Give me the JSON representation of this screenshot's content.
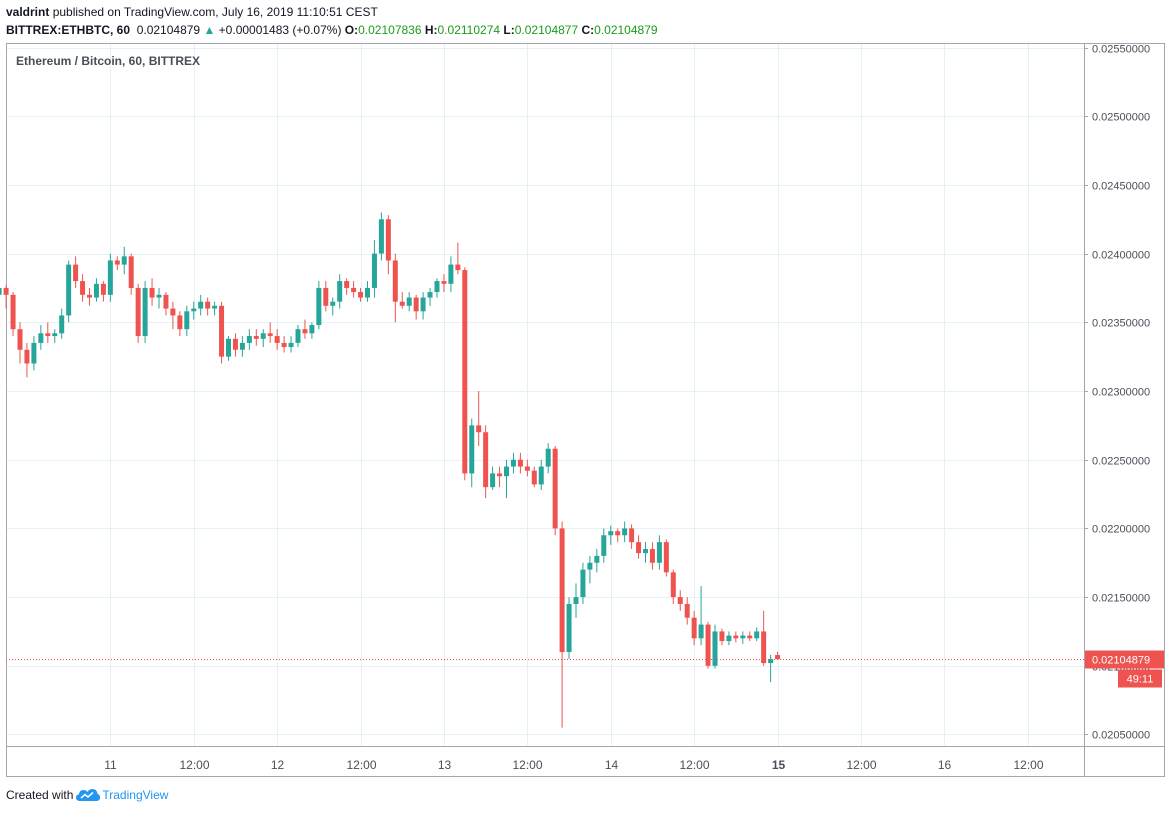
{
  "header": {
    "author": "valdrint",
    "published_text": "published on TradingView.com, July 16, 2019 11:10:51 CEST",
    "symbol_timeframe": "BITTREX:ETHBTC, 60",
    "last_price": "0.02104879",
    "change": "+0.00001483 (+0.07%)",
    "o_label": "O:",
    "o_value": "0.02107836",
    "h_label": "H:",
    "h_value": "0.02110274",
    "l_label": "L:",
    "l_value": "0.02104877",
    "c_label": "C:",
    "c_value": "0.02104879"
  },
  "footer": {
    "created_with": "Created with",
    "brand": "TradingView"
  },
  "colors": {
    "up": "#26a69a",
    "down": "#ef5350",
    "grid": "#e6f0f7",
    "price_line": "#ef5350",
    "brand": "#2196f3"
  },
  "chart_data": {
    "type": "candlestick",
    "title": "Ethereum / Bitcoin, 60, BITTREX",
    "ylim": [
      0.02045,
      0.02555
    ],
    "y_ticks": [
      "0.02550000",
      "0.02500000",
      "0.02450000",
      "0.02400000",
      "0.02350000",
      "0.02300000",
      "0.02250000",
      "0.02200000",
      "0.02150000",
      "0.02100000",
      "0.02050000"
    ],
    "x_ticks": [
      "11",
      "12:00",
      "12",
      "12:00",
      "13",
      "12:00",
      "14",
      "12:00",
      "15",
      "12:00",
      "16",
      "12:00"
    ],
    "x_tick_hours": [
      38,
      50,
      62,
      74,
      86,
      98,
      110,
      122,
      134,
      146,
      158,
      170
    ],
    "last_price": {
      "value": 0.02104879,
      "label": "0.02104879",
      "countdown": "49:11"
    },
    "candles": [
      [
        0.02375,
        0.02377,
        0.02368,
        0.0237
      ],
      [
        0.0237,
        0.02372,
        0.02363,
        0.02365
      ],
      [
        0.02366,
        0.02368,
        0.02355,
        0.0236
      ],
      [
        0.0236,
        0.02362,
        0.0234,
        0.02345
      ],
      [
        0.02345,
        0.0235,
        0.02295,
        0.02335
      ],
      [
        0.02335,
        0.02337,
        0.0232,
        0.02325
      ],
      [
        0.02325,
        0.02345,
        0.0232,
        0.02342
      ],
      [
        0.02342,
        0.02348,
        0.0233,
        0.02335
      ],
      [
        0.02335,
        0.02385,
        0.0233,
        0.0238
      ],
      [
        0.0238,
        0.0245,
        0.02375,
        0.02435
      ],
      [
        0.02435,
        0.02458,
        0.02395,
        0.02415
      ],
      [
        0.02415,
        0.0242,
        0.02395,
        0.024
      ],
      [
        0.024,
        0.02405,
        0.0238,
        0.02385
      ],
      [
        0.02385,
        0.024,
        0.02375,
        0.02395
      ],
      [
        0.02395,
        0.024,
        0.0238,
        0.0239
      ],
      [
        0.0239,
        0.02425,
        0.02385,
        0.0242
      ],
      [
        0.0242,
        0.02422,
        0.0233,
        0.02375
      ],
      [
        0.02375,
        0.0238,
        0.02362,
        0.02365
      ],
      [
        0.02365,
        0.0237,
        0.02355,
        0.0236
      ],
      [
        0.0236,
        0.02368,
        0.02355,
        0.02365
      ],
      [
        0.02365,
        0.02368,
        0.02355,
        0.0236
      ],
      [
        0.0236,
        0.02372,
        0.02358,
        0.0237
      ],
      [
        0.0237,
        0.02378,
        0.02365,
        0.02375
      ],
      [
        0.02375,
        0.02377,
        0.0236,
        0.0237
      ],
      [
        0.0237,
        0.02372,
        0.0234,
        0.02345
      ],
      [
        0.02345,
        0.0235,
        0.0232,
        0.0233
      ],
      [
        0.0233,
        0.02335,
        0.0231,
        0.0232
      ],
      [
        0.0232,
        0.0234,
        0.02315,
        0.02335
      ],
      [
        0.02335,
        0.02348,
        0.0233,
        0.02342
      ],
      [
        0.02342,
        0.0235,
        0.02335,
        0.0234
      ],
      [
        0.0234,
        0.02345,
        0.02335,
        0.02342
      ],
      [
        0.02342,
        0.0236,
        0.02338,
        0.02355
      ],
      [
        0.02355,
        0.02395,
        0.0235,
        0.02392
      ],
      [
        0.02392,
        0.02398,
        0.02375,
        0.0238
      ],
      [
        0.0238,
        0.02385,
        0.02365,
        0.0237
      ],
      [
        0.0237,
        0.02375,
        0.02362,
        0.02368
      ],
      [
        0.02368,
        0.02382,
        0.02365,
        0.02378
      ],
      [
        0.02378,
        0.0238,
        0.02365,
        0.0237
      ],
      [
        0.0237,
        0.024,
        0.02365,
        0.02395
      ],
      [
        0.02395,
        0.02398,
        0.02388,
        0.02392
      ],
      [
        0.02392,
        0.02405,
        0.02385,
        0.02398
      ],
      [
        0.02398,
        0.024,
        0.0237,
        0.02375
      ],
      [
        0.02375,
        0.02378,
        0.02335,
        0.0234
      ],
      [
        0.0234,
        0.0238,
        0.02335,
        0.02375
      ],
      [
        0.02375,
        0.02382,
        0.02362,
        0.02368
      ],
      [
        0.02368,
        0.02375,
        0.0236,
        0.0237
      ],
      [
        0.0237,
        0.02372,
        0.02355,
        0.0236
      ],
      [
        0.0236,
        0.02365,
        0.02345,
        0.02355
      ],
      [
        0.02355,
        0.02358,
        0.0234,
        0.02345
      ],
      [
        0.02345,
        0.02362,
        0.0234,
        0.02358
      ],
      [
        0.02358,
        0.02365,
        0.02352,
        0.0236
      ],
      [
        0.0236,
        0.0237,
        0.02355,
        0.02365
      ],
      [
        0.02365,
        0.02368,
        0.02355,
        0.0236
      ],
      [
        0.0236,
        0.02365,
        0.02355,
        0.02362
      ],
      [
        0.02362,
        0.02365,
        0.0232,
        0.02325
      ],
      [
        0.02325,
        0.0234,
        0.02322,
        0.02338
      ],
      [
        0.02338,
        0.02342,
        0.02325,
        0.0233
      ],
      [
        0.0233,
        0.0234,
        0.02325,
        0.02335
      ],
      [
        0.02335,
        0.02345,
        0.0233,
        0.0234
      ],
      [
        0.0234,
        0.02345,
        0.02333,
        0.02338
      ],
      [
        0.02338,
        0.02345,
        0.02332,
        0.02342
      ],
      [
        0.02342,
        0.0235,
        0.02335,
        0.0234
      ],
      [
        0.0234,
        0.02345,
        0.0233,
        0.02335
      ],
      [
        0.02335,
        0.0234,
        0.02328,
        0.02332
      ],
      [
        0.02332,
        0.0234,
        0.02328,
        0.02335
      ],
      [
        0.02335,
        0.02348,
        0.02332,
        0.02345
      ],
      [
        0.02345,
        0.02352,
        0.02338,
        0.02342
      ],
      [
        0.02342,
        0.0235,
        0.02338,
        0.02348
      ],
      [
        0.02348,
        0.0238,
        0.02345,
        0.02375
      ],
      [
        0.02375,
        0.0238,
        0.02358,
        0.02362
      ],
      [
        0.02362,
        0.02368,
        0.02355,
        0.02365
      ],
      [
        0.02365,
        0.02385,
        0.0236,
        0.0238
      ],
      [
        0.0238,
        0.02382,
        0.0237,
        0.02375
      ],
      [
        0.02375,
        0.0238,
        0.02368,
        0.02372
      ],
      [
        0.02372,
        0.02375,
        0.02365,
        0.02368
      ],
      [
        0.02368,
        0.0238,
        0.02365,
        0.02375
      ],
      [
        0.02375,
        0.0241,
        0.02368,
        0.024
      ],
      [
        0.024,
        0.0243,
        0.02395,
        0.02425
      ],
      [
        0.02425,
        0.02428,
        0.02385,
        0.02395
      ],
      [
        0.02395,
        0.024,
        0.0235,
        0.02365
      ],
      [
        0.02365,
        0.02372,
        0.0236,
        0.02362
      ],
      [
        0.02362,
        0.02372,
        0.02358,
        0.02368
      ],
      [
        0.02368,
        0.0237,
        0.02352,
        0.02358
      ],
      [
        0.02358,
        0.02372,
        0.02352,
        0.02368
      ],
      [
        0.02368,
        0.02375,
        0.02362,
        0.02372
      ],
      [
        0.02372,
        0.02382,
        0.02368,
        0.0238
      ],
      [
        0.0238,
        0.02385,
        0.02372,
        0.02378
      ],
      [
        0.02378,
        0.02398,
        0.02372,
        0.02392
      ],
      [
        0.02392,
        0.02408,
        0.02385,
        0.02388
      ],
      [
        0.02388,
        0.0239,
        0.02235,
        0.0224
      ],
      [
        0.0224,
        0.0228,
        0.0223,
        0.02275
      ],
      [
        0.02275,
        0.023,
        0.0226,
        0.0227
      ],
      [
        0.0227,
        0.02275,
        0.02222,
        0.0223
      ],
      [
        0.0223,
        0.02245,
        0.02228,
        0.0224
      ],
      [
        0.0224,
        0.02245,
        0.0223,
        0.02238
      ],
      [
        0.02238,
        0.0225,
        0.02222,
        0.02245
      ],
      [
        0.02245,
        0.02255,
        0.0224,
        0.0225
      ],
      [
        0.0225,
        0.02255,
        0.0224,
        0.02245
      ],
      [
        0.02245,
        0.0225,
        0.02238,
        0.02242
      ],
      [
        0.02242,
        0.02245,
        0.0223,
        0.02232
      ],
      [
        0.02232,
        0.0225,
        0.02228,
        0.02245
      ],
      [
        0.02245,
        0.02262,
        0.0224,
        0.02258
      ],
      [
        0.02258,
        0.0226,
        0.02195,
        0.022
      ],
      [
        0.022,
        0.02205,
        0.02055,
        0.0211
      ],
      [
        0.0211,
        0.0215,
        0.02105,
        0.02145
      ],
      [
        0.02145,
        0.0216,
        0.02135,
        0.0215
      ],
      [
        0.0215,
        0.02175,
        0.02145,
        0.0217
      ],
      [
        0.0217,
        0.0218,
        0.0216,
        0.02175
      ],
      [
        0.02175,
        0.02185,
        0.02168,
        0.0218
      ],
      [
        0.0218,
        0.022,
        0.02175,
        0.02195
      ],
      [
        0.02195,
        0.02202,
        0.02188,
        0.02198
      ],
      [
        0.02198,
        0.022,
        0.0219,
        0.02195
      ],
      [
        0.02195,
        0.02205,
        0.0219,
        0.022
      ],
      [
        0.022,
        0.02203,
        0.02185,
        0.0219
      ],
      [
        0.0219,
        0.02195,
        0.02178,
        0.02182
      ],
      [
        0.02182,
        0.0219,
        0.02175,
        0.02185
      ],
      [
        0.02185,
        0.0219,
        0.0217,
        0.02175
      ],
      [
        0.02175,
        0.02195,
        0.0217,
        0.0219
      ],
      [
        0.0219,
        0.02192,
        0.02165,
        0.02168
      ],
      [
        0.02168,
        0.0217,
        0.02145,
        0.0215
      ],
      [
        0.0215,
        0.02155,
        0.0214,
        0.02145
      ],
      [
        0.02145,
        0.0215,
        0.0213,
        0.02135
      ],
      [
        0.02135,
        0.0214,
        0.02115,
        0.0212
      ],
      [
        0.0212,
        0.02158,
        0.02115,
        0.0213
      ],
      [
        0.0213,
        0.02132,
        0.02098,
        0.021
      ],
      [
        0.021,
        0.0213,
        0.02098,
        0.02125
      ],
      [
        0.02125,
        0.02127,
        0.02115,
        0.02118
      ],
      [
        0.02118,
        0.02125,
        0.02115,
        0.02122
      ],
      [
        0.02122,
        0.02125,
        0.02117,
        0.0212
      ],
      [
        0.0212,
        0.02125,
        0.02116,
        0.02122
      ],
      [
        0.02122,
        0.02125,
        0.02118,
        0.0212
      ],
      [
        0.0212,
        0.02128,
        0.02118,
        0.02125
      ],
      [
        0.02125,
        0.0214,
        0.021,
        0.02102
      ],
      [
        0.02102,
        0.02108,
        0.02088,
        0.02105
      ],
      [
        0.02107836,
        0.02110274,
        0.02104877,
        0.02104879
      ]
    ]
  }
}
